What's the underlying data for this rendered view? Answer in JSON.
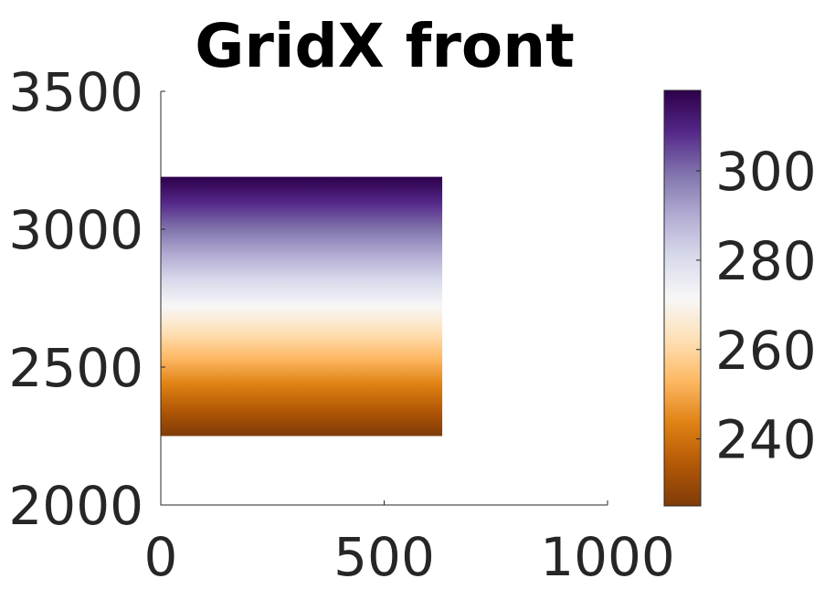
{
  "chart_data": {
    "type": "heatmap",
    "title": "GridX front",
    "xlabel": "",
    "ylabel": "",
    "xlim": [
      0,
      1000
    ],
    "ylim": [
      2000,
      3500
    ],
    "x_ticks": [
      "0",
      "500",
      "1000"
    ],
    "y_ticks": [
      "2000",
      "2500",
      "3000",
      "3500"
    ],
    "field": {
      "x_range": [
        0,
        630
      ],
      "y_range": [
        2250,
        3190
      ],
      "gradient": "vertical",
      "value_at_bottom": 225,
      "value_at_top": 318
    },
    "colorbar": {
      "location": "right",
      "clim": [
        225,
        318
      ],
      "ticks": [
        "240",
        "260",
        "280",
        "300"
      ],
      "colormap": [
        "#7f3b08",
        "#b35806",
        "#e08214",
        "#fdb863",
        "#fee0b6",
        "#f7f7f7",
        "#d8daeb",
        "#b2abd2",
        "#8073ac",
        "#542788",
        "#2d004b"
      ]
    },
    "grid": false
  }
}
